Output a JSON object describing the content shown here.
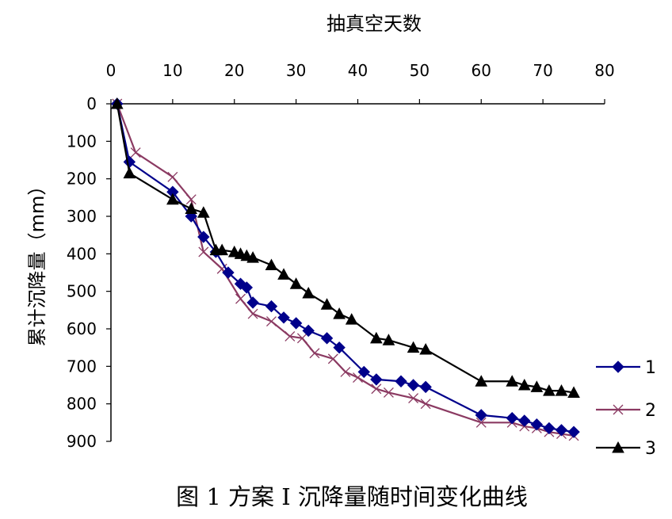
{
  "chart_data": {
    "type": "line",
    "title": "抽真空天数",
    "caption": "图 1  方案 I 沉降量随时间变化曲线",
    "xlabel": "抽真空天数",
    "ylabel": "累计沉降量（mm）",
    "xlim": [
      0,
      80
    ],
    "ylim": [
      0,
      900
    ],
    "y_inverted": true,
    "x_axis_position": "top",
    "grid": false,
    "legend_position": "right",
    "x_ticks": [
      "0",
      "10",
      "20",
      "30",
      "40",
      "50",
      "60",
      "70",
      "80"
    ],
    "y_ticks": [
      "0",
      "100",
      "200",
      "300",
      "400",
      "500",
      "600",
      "700",
      "800",
      "900"
    ],
    "series": [
      {
        "name": "1",
        "color": "#00008b",
        "marker": "diamond",
        "x": [
          1,
          3,
          10,
          13,
          15,
          17,
          19,
          21,
          22,
          23,
          26,
          28,
          30,
          32,
          35,
          37,
          41,
          43,
          47,
          49,
          51,
          60,
          65,
          67,
          69,
          71,
          73,
          75
        ],
        "y": [
          0,
          155,
          235,
          300,
          355,
          395,
          450,
          480,
          490,
          530,
          540,
          570,
          585,
          605,
          625,
          650,
          715,
          735,
          740,
          750,
          755,
          830,
          838,
          845,
          855,
          865,
          870,
          875
        ]
      },
      {
        "name": "2",
        "color": "#8b3a62",
        "marker": "x",
        "x": [
          1,
          4,
          10,
          13,
          15,
          18,
          21,
          23,
          26,
          29,
          31,
          33,
          36,
          38,
          40,
          43,
          45,
          49,
          51,
          60,
          65,
          67,
          69,
          71,
          73,
          75
        ],
        "y": [
          0,
          130,
          195,
          255,
          395,
          440,
          520,
          560,
          580,
          620,
          625,
          665,
          680,
          715,
          730,
          760,
          770,
          785,
          800,
          850,
          850,
          860,
          865,
          875,
          880,
          885
        ]
      },
      {
        "name": "3",
        "color": "#000000",
        "marker": "triangle",
        "x": [
          1,
          3,
          10,
          13,
          15,
          17,
          18,
          20,
          21,
          22,
          23,
          26,
          28,
          30,
          32,
          35,
          37,
          39,
          43,
          45,
          49,
          51,
          60,
          65,
          67,
          69,
          71,
          73,
          75
        ],
        "y": [
          0,
          185,
          255,
          280,
          290,
          390,
          390,
          395,
          400,
          405,
          410,
          430,
          455,
          480,
          505,
          535,
          560,
          575,
          625,
          630,
          650,
          655,
          740,
          740,
          750,
          755,
          765,
          765,
          770
        ]
      }
    ]
  }
}
